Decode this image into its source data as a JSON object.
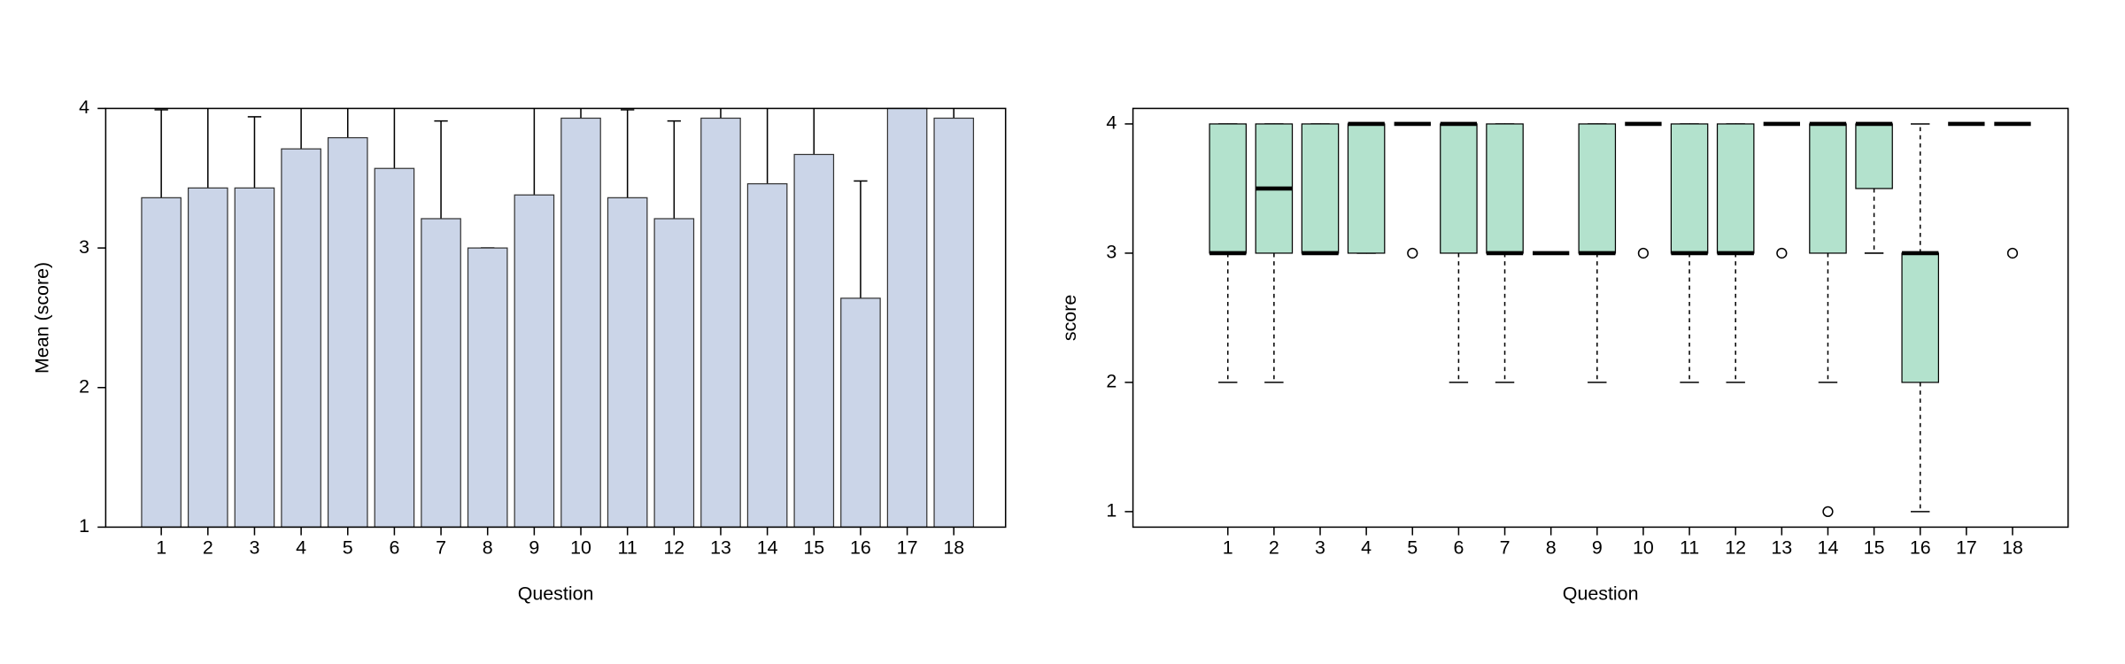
{
  "charts": [
    {
      "type": "bar",
      "xlabel": "Question",
      "ylabel": "Mean (score)",
      "categories": [
        "1",
        "2",
        "3",
        "4",
        "5",
        "6",
        "7",
        "8",
        "9",
        "10",
        "11",
        "12",
        "13",
        "14",
        "15",
        "16",
        "17",
        "18"
      ],
      "values": [
        3.36,
        3.43,
        3.43,
        3.71,
        3.79,
        3.57,
        3.21,
        3.0,
        3.38,
        3.93,
        3.36,
        3.21,
        3.93,
        3.46,
        3.67,
        2.64,
        4.0,
        3.93
      ],
      "errors": [
        0.63,
        0.65,
        0.51,
        0.47,
        0.43,
        0.64,
        0.7,
        0,
        0.65,
        0.27,
        0.63,
        0.7,
        0.27,
        0.96,
        0.58,
        0.84,
        0,
        0.27
      ],
      "color": "#cbd5e8",
      "ylim": [
        1,
        4
      ],
      "yticks": [
        1,
        2,
        3,
        4
      ]
    },
    {
      "type": "box",
      "xlabel": "Question",
      "ylabel": "score",
      "categories": [
        "1",
        "2",
        "3",
        "4",
        "5",
        "6",
        "7",
        "8",
        "9",
        "10",
        "11",
        "12",
        "13",
        "14",
        "15",
        "16",
        "17",
        "18"
      ],
      "boxes": [
        {
          "whislo": 2,
          "q1": 3,
          "med": 3,
          "q3": 4,
          "whishi": 4,
          "outliers": []
        },
        {
          "whislo": 2,
          "q1": 3,
          "med": 3.5,
          "q3": 4,
          "whishi": 4,
          "outliers": []
        },
        {
          "whislo": 3,
          "q1": 3,
          "med": 3,
          "q3": 4,
          "whishi": 4,
          "outliers": []
        },
        {
          "whislo": 3,
          "q1": 3,
          "med": 4,
          "q3": 4,
          "whishi": 4,
          "outliers": []
        },
        {
          "whislo": 4,
          "q1": 4,
          "med": 4,
          "q3": 4,
          "whishi": 4,
          "outliers": [
            3
          ]
        },
        {
          "whislo": 2,
          "q1": 3,
          "med": 4,
          "q3": 4,
          "whishi": 4,
          "outliers": []
        },
        {
          "whislo": 2,
          "q1": 3,
          "med": 3,
          "q3": 4,
          "whishi": 4,
          "outliers": []
        },
        {
          "whislo": 3,
          "q1": 3,
          "med": 3,
          "q3": 3,
          "whishi": 3,
          "outliers": []
        },
        {
          "whislo": 2,
          "q1": 3,
          "med": 3,
          "q3": 4,
          "whishi": 4,
          "outliers": []
        },
        {
          "whislo": 4,
          "q1": 4,
          "med": 4,
          "q3": 4,
          "whishi": 4,
          "outliers": [
            3
          ]
        },
        {
          "whislo": 2,
          "q1": 3,
          "med": 3,
          "q3": 4,
          "whishi": 4,
          "outliers": []
        },
        {
          "whislo": 2,
          "q1": 3,
          "med": 3,
          "q3": 4,
          "whishi": 4,
          "outliers": []
        },
        {
          "whislo": 4,
          "q1": 4,
          "med": 4,
          "q3": 4,
          "whishi": 4,
          "outliers": [
            3
          ]
        },
        {
          "whislo": 2,
          "q1": 3,
          "med": 4,
          "q3": 4,
          "whishi": 4,
          "outliers": [
            1
          ]
        },
        {
          "whislo": 3,
          "q1": 3.5,
          "med": 4,
          "q3": 4,
          "whishi": 4,
          "outliers": []
        },
        {
          "whislo": 1,
          "q1": 2,
          "med": 3,
          "q3": 3,
          "whishi": 4,
          "outliers": []
        },
        {
          "whislo": 4,
          "q1": 4,
          "med": 4,
          "q3": 4,
          "whishi": 4,
          "outliers": []
        },
        {
          "whislo": 4,
          "q1": 4,
          "med": 4,
          "q3": 4,
          "whishi": 4,
          "outliers": [
            3
          ]
        }
      ],
      "color": "#b3e2cd",
      "ylim": [
        0.88,
        4.12
      ],
      "yticks": [
        1,
        2,
        3,
        4
      ]
    }
  ]
}
